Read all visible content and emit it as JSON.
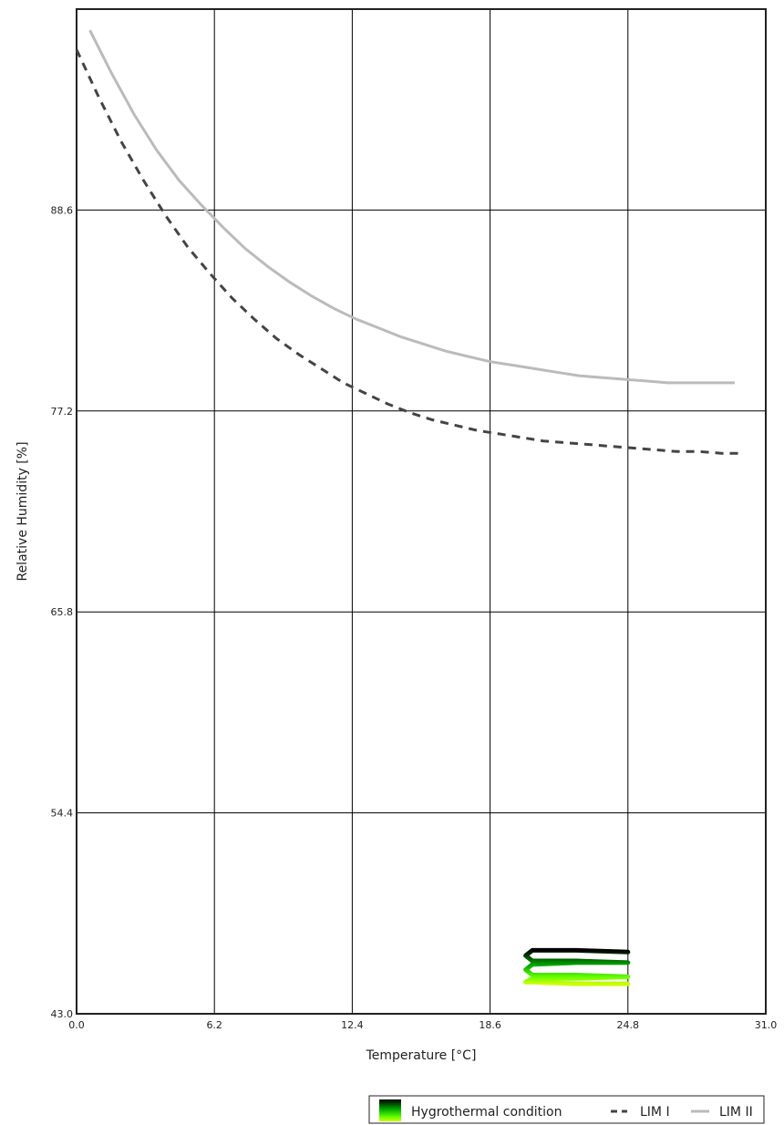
{
  "chart_data": {
    "type": "line",
    "xlabel": "Temperature [°C]",
    "ylabel": "Relative Humidity [%]",
    "xlim": [
      0.0,
      31.0
    ],
    "ylim": [
      43.0,
      100.0
    ],
    "x_ticks": [
      "0.0",
      "6.2",
      "12.4",
      "18.6",
      "24.8",
      "31.0"
    ],
    "y_ticks": [
      "43.0",
      "54.4",
      "65.8",
      "77.2",
      "88.6"
    ],
    "grid": true,
    "legend_position": "bottom-right",
    "series": [
      {
        "name": "LIM I",
        "style": "dashed",
        "color": "#444444",
        "x": [
          0.0,
          1.0,
          2.0,
          3.0,
          4.0,
          5.0,
          6.0,
          7.0,
          8.0,
          9.0,
          10.0,
          11.0,
          12.0,
          13.0,
          14.0,
          15.0,
          16.0,
          17.0,
          18.0,
          19.0,
          20.0,
          21.0,
          22.0,
          23.0,
          24.0,
          25.0,
          26.0,
          27.0,
          28.0,
          29.0,
          30.0
        ],
        "y": [
          97.7,
          95.0,
          92.5,
          90.3,
          88.3,
          86.5,
          85.0,
          83.6,
          82.4,
          81.3,
          80.4,
          79.6,
          78.8,
          78.2,
          77.6,
          77.1,
          76.7,
          76.4,
          76.1,
          75.9,
          75.7,
          75.5,
          75.4,
          75.3,
          75.2,
          75.1,
          75.0,
          74.9,
          74.9,
          74.8,
          74.8
        ]
      },
      {
        "name": "LIM II",
        "style": "solid",
        "color": "#bbbbbb",
        "x": [
          0.6,
          1.6,
          2.6,
          3.6,
          4.6,
          5.6,
          6.6,
          7.6,
          8.6,
          9.6,
          10.6,
          11.6,
          12.6,
          13.6,
          14.6,
          15.6,
          16.6,
          17.6,
          18.6,
          19.6,
          20.6,
          21.6,
          22.6,
          23.6,
          24.6,
          25.6,
          26.6,
          27.6,
          28.6,
          29.6
        ],
        "y": [
          98.8,
          96.3,
          94.0,
          92.0,
          90.3,
          88.9,
          87.6,
          86.4,
          85.4,
          84.5,
          83.7,
          83.0,
          82.4,
          81.9,
          81.4,
          81.0,
          80.6,
          80.3,
          80.0,
          79.8,
          79.6,
          79.4,
          79.2,
          79.1,
          79.0,
          78.9,
          78.8,
          78.8,
          78.8,
          78.8
        ]
      },
      {
        "name": "Hygrothermal condition",
        "style": "thick",
        "color_gradient": [
          "#000000",
          "#00aa00",
          "#66ff00",
          "#ccff00"
        ],
        "x": [
          24.8,
          22.5,
          20.5,
          20.2,
          20.5,
          22.5,
          24.8,
          22.5,
          20.5,
          20.2,
          20.5,
          22.5,
          24.8,
          22.5,
          20.5,
          20.2,
          20.5,
          22.5,
          24.8
        ],
        "y": [
          46.5,
          46.6,
          46.6,
          46.3,
          46.0,
          46.0,
          45.9,
          45.9,
          45.8,
          45.5,
          45.2,
          45.2,
          45.1,
          45.0,
          45.0,
          44.8,
          44.8,
          44.7,
          44.7
        ]
      }
    ],
    "legend": [
      {
        "label": "Hygrothermal condition",
        "kind": "gradient"
      },
      {
        "label": "LIM I",
        "kind": "dashed"
      },
      {
        "label": "LIM II",
        "kind": "solid"
      }
    ]
  }
}
